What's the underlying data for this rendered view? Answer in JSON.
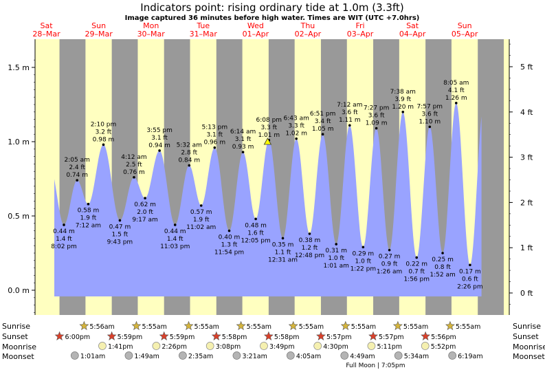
{
  "title": "Indicators point: rising  ordinary tide at 1.0m (3.3ft)",
  "subtitle": "Image captured 36 minutes before high water. Times are WIT (UTC +7.0hrs)",
  "colors": {
    "day_bg": "#ffffc0",
    "night_bg": "#999999",
    "tide_fill": "#99a3ff",
    "day_label": "#ff0000",
    "text": "#000000",
    "sun_star": "#d4b43c",
    "sunset_star": "#d9402a",
    "moonrise": "#f5f0b0",
    "moonset": "#b4b4b4"
  },
  "chart_data": {
    "type": "area",
    "y_left_unit": "m",
    "y_right_unit": "ft",
    "y_left_ticks": [
      {
        "v": 0.0,
        "label": "0.0 m"
      },
      {
        "v": 0.5,
        "label": "0.5 m"
      },
      {
        "v": 1.0,
        "label": "1.0 m"
      },
      {
        "v": 1.5,
        "label": "1.5 m"
      }
    ],
    "y_right_ticks": [
      {
        "v": 0,
        "label": "0 ft"
      },
      {
        "v": 1,
        "label": "1 ft"
      },
      {
        "v": 2,
        "label": "2 ft"
      },
      {
        "v": 3,
        "label": "3 ft"
      },
      {
        "v": 4,
        "label": "4 ft"
      },
      {
        "v": 5,
        "label": "5 ft"
      }
    ],
    "ylim": [
      -0.2,
      1.6
    ],
    "days": [
      {
        "dow": "Sat",
        "date": "28–Mar"
      },
      {
        "dow": "Sun",
        "date": "29–Mar"
      },
      {
        "dow": "Mon",
        "date": "30–Mar"
      },
      {
        "dow": "Tue",
        "date": "31–Mar"
      },
      {
        "dow": "Wed",
        "date": "01–Apr"
      },
      {
        "dow": "Thu",
        "date": "02–Apr"
      },
      {
        "dow": "Fri",
        "date": "03–Apr"
      },
      {
        "dow": "Sat",
        "date": "04–Apr"
      },
      {
        "dow": "Sun",
        "date": "05–Apr"
      }
    ],
    "extremes": [
      {
        "time": "8:02 pm",
        "m": 0.44,
        "ft": "1.4 ft",
        "type": "low"
      },
      {
        "time": "2:05 am",
        "m": 0.74,
        "ft": "2.4 ft",
        "type": "high"
      },
      {
        "time": "7:12 am",
        "m": 0.58,
        "ft": "1.9 ft",
        "type": "low"
      },
      {
        "time": "2:10 pm",
        "m": 0.98,
        "ft": "3.2 ft",
        "type": "high"
      },
      {
        "time": "9:43 pm",
        "m": 0.47,
        "ft": "1.5 ft",
        "type": "low"
      },
      {
        "time": "4:12 am",
        "m": 0.76,
        "ft": "2.5 ft",
        "type": "high"
      },
      {
        "time": "9:17 am",
        "m": 0.62,
        "ft": "2.0 ft",
        "type": "low"
      },
      {
        "time": "3:55 pm",
        "m": 0.94,
        "ft": "3.1 ft",
        "type": "high"
      },
      {
        "time": "11:03 pm",
        "m": 0.44,
        "ft": "1.4 ft",
        "type": "low"
      },
      {
        "time": "5:32 am",
        "m": 0.84,
        "ft": "2.8 ft",
        "type": "high"
      },
      {
        "time": "11:02 am",
        "m": 0.57,
        "ft": "1.9 ft",
        "type": "low"
      },
      {
        "time": "5:13 pm",
        "m": 0.96,
        "ft": "3.1 ft",
        "type": "high"
      },
      {
        "time": "11:54 pm",
        "m": 0.4,
        "ft": "1.3 ft",
        "type": "low"
      },
      {
        "time": "6:14 am",
        "m": 0.93,
        "ft": "3.1 ft",
        "type": "high"
      },
      {
        "time": "12:05 pm",
        "m": 0.48,
        "ft": "1.6 ft",
        "type": "low"
      },
      {
        "time": "6:08 pm",
        "m": 1.01,
        "ft": "3.3 ft",
        "type": "high"
      },
      {
        "time": "12:31 am",
        "m": 0.35,
        "ft": "1.1 ft",
        "type": "low"
      },
      {
        "time": "6:43 am",
        "m": 1.02,
        "ft": "3.3 ft",
        "type": "high"
      },
      {
        "time": "12:48 pm",
        "m": 0.38,
        "ft": "1.2 ft",
        "type": "low"
      },
      {
        "time": "6:51 pm",
        "m": 1.05,
        "ft": "3.4 ft",
        "type": "high"
      },
      {
        "time": "1:01 am",
        "m": 0.31,
        "ft": "1.0 ft",
        "type": "low"
      },
      {
        "time": "7:12 am",
        "m": 1.11,
        "ft": "3.6 ft",
        "type": "high"
      },
      {
        "time": "1:22 pm",
        "m": 0.29,
        "ft": "1.0 ft",
        "type": "low"
      },
      {
        "time": "7:27 pm",
        "m": 1.09,
        "ft": "3.6 ft",
        "type": "high"
      },
      {
        "time": "1:26 am",
        "m": 0.27,
        "ft": "0.9 ft",
        "type": "low"
      },
      {
        "time": "7:38 am",
        "m": 1.2,
        "ft": "3.9 ft",
        "type": "high"
      },
      {
        "time": "1:56 pm",
        "m": 0.22,
        "ft": "0.7 ft",
        "type": "low"
      },
      {
        "time": "7:57 pm",
        "m": 1.1,
        "ft": "3.6 ft",
        "type": "high"
      },
      {
        "time": "1:52 am",
        "m": 0.25,
        "ft": "0.8 ft",
        "type": "low"
      },
      {
        "time": "8:05 am",
        "m": 1.26,
        "ft": "4.1 ft",
        "type": "high"
      },
      {
        "time": "2:26 pm",
        "m": 0.17,
        "ft": "0.6 ft",
        "type": "low"
      }
    ],
    "current": {
      "m": 1.0,
      "marker": "triangle"
    }
  },
  "sun_moon": {
    "labels": {
      "sunrise": "Sunrise",
      "sunset": "Sunset",
      "moonrise": "Moonrise",
      "moonset": "Moonset"
    },
    "sunrise": [
      "5:56am",
      "5:55am",
      "5:55am",
      "5:55am",
      "5:55am",
      "5:55am",
      "5:55am",
      "5:55am"
    ],
    "sunset": [
      "6:00pm",
      "5:59pm",
      "5:59pm",
      "5:58pm",
      "5:58pm",
      "5:57pm",
      "5:57pm",
      "5:56pm"
    ],
    "moonrise": [
      "1:41pm",
      "2:26pm",
      "3:08pm",
      "3:49pm",
      "4:30pm",
      "5:11pm",
      "5:52pm"
    ],
    "moonset": [
      "1:01am",
      "1:49am",
      "2:35am",
      "3:21am",
      "4:05am",
      "4:49am",
      "5:34am",
      "6:19am"
    ],
    "note": "Full Moon | 7:05pm"
  }
}
